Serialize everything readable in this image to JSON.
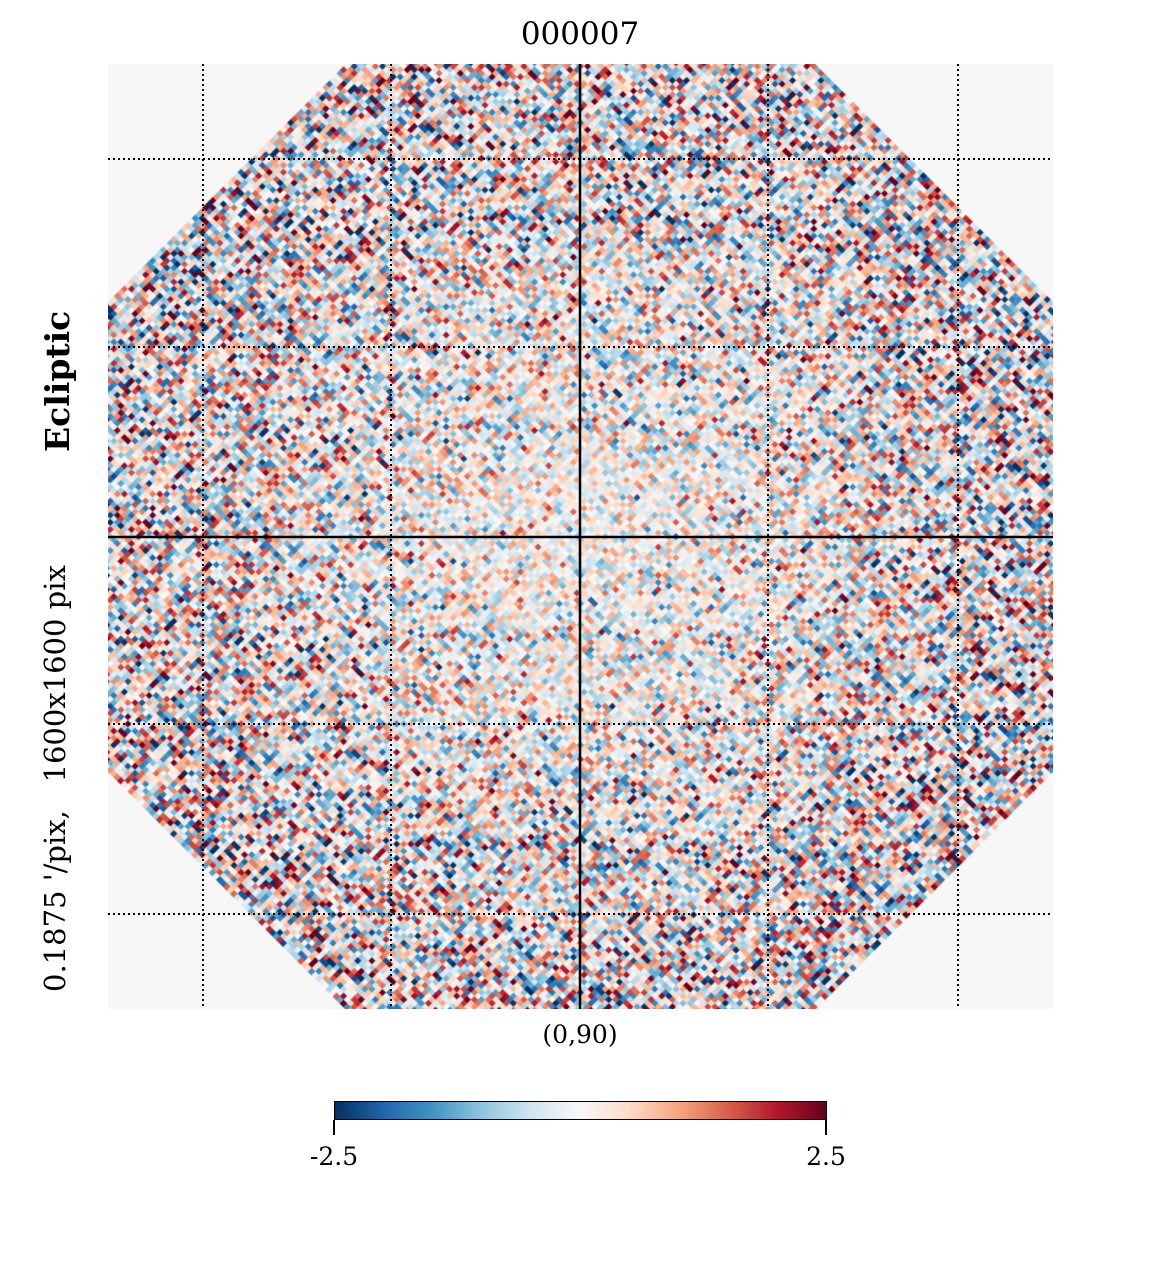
{
  "chart_data": {
    "type": "heatmap",
    "title": "000007",
    "projection": "gnomonic",
    "coordinate_system": "Ecliptic",
    "resolution_label": "0.1875 '/pix,   1600x1600 pix",
    "center_label": "(0,90)",
    "colormap": "RdBu_r",
    "vmin": -2.5,
    "vmax": 2.5,
    "colorbar_ticks": [
      "-2.5",
      "2.5"
    ],
    "graticule": "dotted",
    "colormap_stops": [
      "#053061",
      "#2166ac",
      "#4393c3",
      "#92c5de",
      "#d1e5f0",
      "#f7f7f7",
      "#fddbc7",
      "#f4a582",
      "#d6604d",
      "#b2182b",
      "#67001f"
    ]
  }
}
